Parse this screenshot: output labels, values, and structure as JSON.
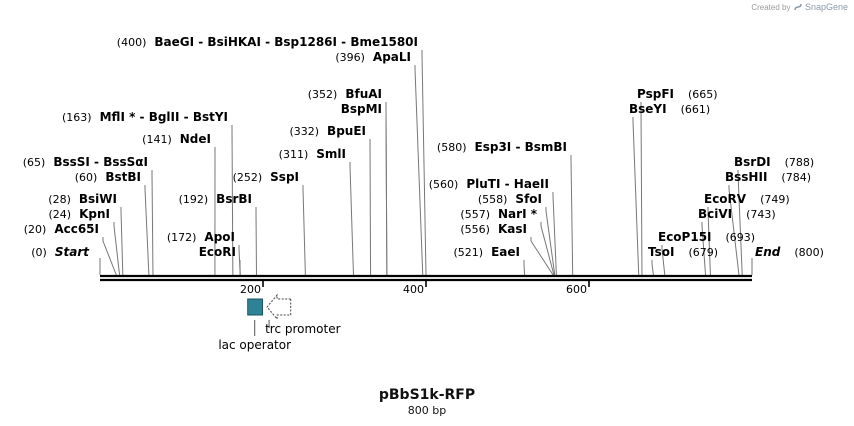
{
  "credit": {
    "prefix": "Created by",
    "brand": "SnapGene"
  },
  "plasmid": {
    "name": "pBbS1k-RFP",
    "length_label": "800 bp",
    "length_bp": 800
  },
  "axis": {
    "ticks": [
      {
        "bp": 200,
        "label": "200"
      },
      {
        "bp": 400,
        "label": "400"
      },
      {
        "bp": 600,
        "label": "600"
      }
    ]
  },
  "sites": [
    {
      "bp": 0,
      "pos": "(0)",
      "name": "Start",
      "terminal": true
    },
    {
      "bp": 20,
      "pos": "(20)",
      "name": "Acc65I"
    },
    {
      "bp": 24,
      "pos": "(24)",
      "name": "KpnI"
    },
    {
      "bp": 28,
      "pos": "(28)",
      "name": "BsiWI"
    },
    {
      "bp": 60,
      "pos": "(60)",
      "name": "BstBI"
    },
    {
      "bp": 65,
      "pos": "(65)",
      "names": [
        "BssSI",
        "BssSαI"
      ]
    },
    {
      "bp": 141,
      "pos": "(141)",
      "name": "NdeI"
    },
    {
      "bp": 163,
      "pos": "(163)",
      "names": [
        "MflI *",
        "BglII",
        "BstYI"
      ]
    },
    {
      "bp": 172,
      "pos": "(172)",
      "name": "ApoI"
    },
    {
      "bp": 172,
      "pos": "",
      "name": "EcoRI"
    },
    {
      "bp": 192,
      "pos": "(192)",
      "name": "BsrBI"
    },
    {
      "bp": 252,
      "pos": "(252)",
      "name": "SspI"
    },
    {
      "bp": 311,
      "pos": "(311)",
      "name": "SmlI"
    },
    {
      "bp": 332,
      "pos": "(332)",
      "name": "BpuEI"
    },
    {
      "bp": 352,
      "pos": "(352)",
      "name": "BfuAI"
    },
    {
      "bp": 352,
      "pos": "",
      "name": "BspMI"
    },
    {
      "bp": 396,
      "pos": "(396)",
      "name": "ApaLI"
    },
    {
      "bp": 400,
      "pos": "(400)",
      "names": [
        "BaeGI",
        "BsiHKAI",
        "Bsp1286I",
        "Bme1580I"
      ]
    },
    {
      "bp": 521,
      "pos": "(521)",
      "name": "EaeI"
    },
    {
      "bp": 556,
      "pos": "(556)",
      "name": "KasI"
    },
    {
      "bp": 557,
      "pos": "(557)",
      "name": "NarI *"
    },
    {
      "bp": 558,
      "pos": "(558)",
      "name": "SfoI"
    },
    {
      "bp": 560,
      "pos": "(560)",
      "names": [
        "PluTI",
        "HaeII"
      ]
    },
    {
      "bp": 580,
      "pos": "(580)",
      "names": [
        "Esp3I",
        "BsmBI"
      ]
    },
    {
      "bp": 661,
      "pos": "(661)",
      "name": "BseYI"
    },
    {
      "bp": 665,
      "pos": "(665)",
      "name": "PspFI"
    },
    {
      "bp": 679,
      "pos": "(679)",
      "name": "TsoI"
    },
    {
      "bp": 693,
      "pos": "(693)",
      "name": "EcoP15I"
    },
    {
      "bp": 743,
      "pos": "(743)",
      "name": "BciVI"
    },
    {
      "bp": 749,
      "pos": "(749)",
      "name": "EcoRV"
    },
    {
      "bp": 784,
      "pos": "(784)",
      "name": "BssHII"
    },
    {
      "bp": 788,
      "pos": "(788)",
      "name": "BsrDI"
    },
    {
      "bp": 800,
      "pos": "(800)",
      "name": "End",
      "terminal": true
    }
  ],
  "features": [
    {
      "name": "lac operator",
      "start_bp": 180,
      "end_bp": 197,
      "color": "#2e8296",
      "type": "protein_bind"
    },
    {
      "name": "trc promoter",
      "start_bp": 205,
      "end_bp": 234,
      "color": "#ffffff",
      "type": "promoter",
      "strand": "reverse"
    }
  ],
  "colors": {
    "backbone": "#000000",
    "site_line": "#777777",
    "feature_line": "#555555"
  }
}
